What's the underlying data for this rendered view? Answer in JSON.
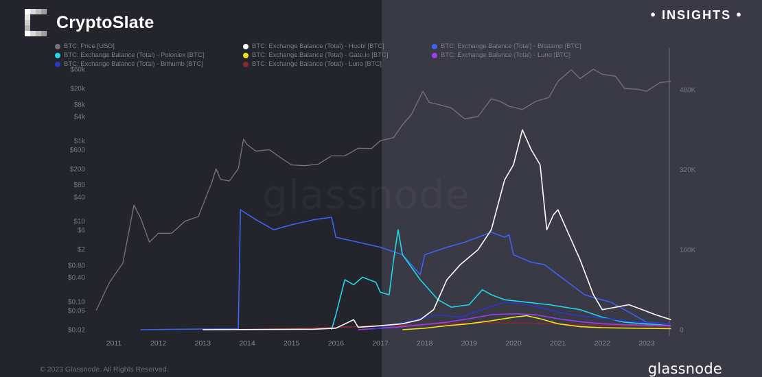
{
  "brand": {
    "name": "CryptoSlate"
  },
  "badge": {
    "label": "INSIGHTS"
  },
  "footer": {
    "copyright": "© 2023 Glassnode. All Rights Reserved.",
    "logo": "glassnode"
  },
  "watermark": "glassnode",
  "colors": {
    "price": "#7a6e7a",
    "huobi": "#ffffff",
    "bitstamp": "#3d63f0",
    "poloniex": "#1fd8e8",
    "gateio": "#f2e51f",
    "luno": "#9b3ff0",
    "bithumb": "#2a37c8",
    "luno_dark": "#8a2a2a"
  },
  "chart_data": {
    "type": "line",
    "title": "",
    "x_ticks": [
      "2011",
      "2012",
      "2013",
      "2014",
      "2015",
      "2016",
      "2017",
      "2018",
      "2019",
      "2020",
      "2021",
      "2022",
      "2023"
    ],
    "y_left_ticks": [
      "$60k",
      "$20k",
      "$8k",
      "$4k",
      "$1k",
      "$600",
      "$200",
      "$80",
      "$40",
      "$10",
      "$6",
      "$2",
      "$0.80",
      "$0.40",
      "$0.10",
      "$0.06",
      "$0.02"
    ],
    "y_right_ticks": [
      "480K",
      "320K",
      "160K",
      "0"
    ],
    "y_left_scale": "log",
    "y_right_range": [
      0,
      480000
    ],
    "legend_position": "top",
    "series": [
      {
        "name": "BTC: Price [USD]",
        "axis": "left",
        "color_key": "price",
        "points": [
          [
            2010.6,
            0.06
          ],
          [
            2010.9,
            0.3
          ],
          [
            2011.2,
            0.9
          ],
          [
            2011.45,
            25
          ],
          [
            2011.6,
            12
          ],
          [
            2011.8,
            3
          ],
          [
            2012.0,
            5
          ],
          [
            2012.3,
            5
          ],
          [
            2012.6,
            10
          ],
          [
            2012.9,
            13
          ],
          [
            2013.2,
            90
          ],
          [
            2013.3,
            200
          ],
          [
            2013.4,
            110
          ],
          [
            2013.6,
            100
          ],
          [
            2013.8,
            200
          ],
          [
            2013.92,
            1100
          ],
          [
            2014.0,
            800
          ],
          [
            2014.2,
            550
          ],
          [
            2014.5,
            600
          ],
          [
            2014.8,
            350
          ],
          [
            2015.0,
            250
          ],
          [
            2015.3,
            240
          ],
          [
            2015.6,
            260
          ],
          [
            2015.9,
            420
          ],
          [
            2016.2,
            420
          ],
          [
            2016.5,
            650
          ],
          [
            2016.8,
            640
          ],
          [
            2017.0,
            1000
          ],
          [
            2017.3,
            1200
          ],
          [
            2017.5,
            2500
          ],
          [
            2017.7,
            4500
          ],
          [
            2017.96,
            17000
          ],
          [
            2018.1,
            9000
          ],
          [
            2018.3,
            8000
          ],
          [
            2018.6,
            6500
          ],
          [
            2018.9,
            3500
          ],
          [
            2019.2,
            4000
          ],
          [
            2019.5,
            11000
          ],
          [
            2019.7,
            9500
          ],
          [
            2019.9,
            7200
          ],
          [
            2020.2,
            6000
          ],
          [
            2020.5,
            9500
          ],
          [
            2020.8,
            12000
          ],
          [
            2021.0,
            30000
          ],
          [
            2021.3,
            58000
          ],
          [
            2021.5,
            35000
          ],
          [
            2021.8,
            60000
          ],
          [
            2022.0,
            45000
          ],
          [
            2022.3,
            40000
          ],
          [
            2022.5,
            20000
          ],
          [
            2022.8,
            19000
          ],
          [
            2023.0,
            17000
          ],
          [
            2023.3,
            28000
          ],
          [
            2023.55,
            30000
          ]
        ]
      },
      {
        "name": "BTC: Exchange Balance (Total) - Huobi [BTC]",
        "axis": "right",
        "color_key": "huobi",
        "points": [
          [
            2013.0,
            0
          ],
          [
            2015.5,
            1000
          ],
          [
            2016.0,
            3000
          ],
          [
            2016.4,
            20000
          ],
          [
            2016.5,
            5000
          ],
          [
            2017.0,
            8000
          ],
          [
            2017.5,
            12000
          ],
          [
            2017.9,
            20000
          ],
          [
            2018.2,
            40000
          ],
          [
            2018.5,
            100000
          ],
          [
            2018.8,
            130000
          ],
          [
            2019.2,
            160000
          ],
          [
            2019.5,
            200000
          ],
          [
            2019.8,
            300000
          ],
          [
            2020.0,
            330000
          ],
          [
            2020.2,
            400000
          ],
          [
            2020.4,
            360000
          ],
          [
            2020.6,
            330000
          ],
          [
            2020.75,
            200000
          ],
          [
            2020.9,
            230000
          ],
          [
            2021.0,
            240000
          ],
          [
            2021.2,
            200000
          ],
          [
            2021.5,
            140000
          ],
          [
            2021.8,
            70000
          ],
          [
            2022.0,
            40000
          ],
          [
            2022.3,
            45000
          ],
          [
            2022.6,
            50000
          ],
          [
            2022.9,
            40000
          ],
          [
            2023.2,
            30000
          ],
          [
            2023.55,
            20000
          ]
        ]
      },
      {
        "name": "BTC: Exchange Balance (Total) - Bitstamp [BTC]",
        "axis": "right",
        "color_key": "bitstamp",
        "points": [
          [
            2011.6,
            0
          ],
          [
            2013.8,
            2000
          ],
          [
            2013.85,
            240000
          ],
          [
            2014.2,
            220000
          ],
          [
            2014.6,
            200000
          ],
          [
            2015.0,
            210000
          ],
          [
            2015.5,
            220000
          ],
          [
            2015.9,
            225000
          ],
          [
            2016.0,
            185000
          ],
          [
            2016.5,
            175000
          ],
          [
            2017.0,
            165000
          ],
          [
            2017.5,
            150000
          ],
          [
            2017.9,
            110000
          ],
          [
            2018.0,
            150000
          ],
          [
            2018.5,
            165000
          ],
          [
            2018.9,
            175000
          ],
          [
            2019.2,
            185000
          ],
          [
            2019.5,
            195000
          ],
          [
            2019.8,
            185000
          ],
          [
            2019.9,
            190000
          ],
          [
            2020.0,
            150000
          ],
          [
            2020.4,
            135000
          ],
          [
            2020.7,
            130000
          ],
          [
            2021.0,
            110000
          ],
          [
            2021.3,
            90000
          ],
          [
            2021.6,
            70000
          ],
          [
            2021.9,
            62000
          ],
          [
            2022.2,
            55000
          ],
          [
            2022.5,
            40000
          ],
          [
            2023.0,
            15000
          ],
          [
            2023.55,
            12000
          ]
        ]
      },
      {
        "name": "BTC: Exchange Balance (Total) - Poloniex [BTC]",
        "axis": "right",
        "color_key": "poloniex",
        "points": [
          [
            2015.9,
            0
          ],
          [
            2016.0,
            30000
          ],
          [
            2016.2,
            100000
          ],
          [
            2016.4,
            90000
          ],
          [
            2016.6,
            105000
          ],
          [
            2016.9,
            95000
          ],
          [
            2017.0,
            75000
          ],
          [
            2017.2,
            70000
          ],
          [
            2017.3,
            140000
          ],
          [
            2017.4,
            200000
          ],
          [
            2017.5,
            150000
          ],
          [
            2017.7,
            125000
          ],
          [
            2017.9,
            100000
          ],
          [
            2018.0,
            90000
          ],
          [
            2018.3,
            60000
          ],
          [
            2018.6,
            45000
          ],
          [
            2019.0,
            50000
          ],
          [
            2019.3,
            80000
          ],
          [
            2019.5,
            70000
          ],
          [
            2019.8,
            60000
          ],
          [
            2020.3,
            55000
          ],
          [
            2020.8,
            50000
          ],
          [
            2021.5,
            40000
          ],
          [
            2022.0,
            25000
          ],
          [
            2022.5,
            15000
          ],
          [
            2023.55,
            8000
          ]
        ]
      },
      {
        "name": "BTC: Exchange Balance (Total) - Gate.io [BTC]",
        "axis": "right",
        "color_key": "gateio",
        "points": [
          [
            2017.5,
            0
          ],
          [
            2018.0,
            3000
          ],
          [
            2018.5,
            8000
          ],
          [
            2019.0,
            12000
          ],
          [
            2019.5,
            18000
          ],
          [
            2020.0,
            25000
          ],
          [
            2020.3,
            28000
          ],
          [
            2020.6,
            22000
          ],
          [
            2021.0,
            12000
          ],
          [
            2021.5,
            6000
          ],
          [
            2022.0,
            4000
          ],
          [
            2023.55,
            2000
          ]
        ]
      },
      {
        "name": "BTC: Exchange Balance (Total) - Luno [BTC]",
        "axis": "right",
        "color_key": "luno",
        "points": [
          [
            2016.5,
            0
          ],
          [
            2017.5,
            6000
          ],
          [
            2018.5,
            15000
          ],
          [
            2019.0,
            22000
          ],
          [
            2019.5,
            30000
          ],
          [
            2020.0,
            32000
          ],
          [
            2020.5,
            30000
          ],
          [
            2021.0,
            22000
          ],
          [
            2021.5,
            16000
          ],
          [
            2022.0,
            12000
          ],
          [
            2022.5,
            10000
          ],
          [
            2023.55,
            8000
          ]
        ]
      },
      {
        "name": "BTC: Exchange Balance (Total) - Bithumb [BTC]",
        "axis": "right",
        "color_key": "bithumb",
        "points": [
          [
            2016.8,
            0
          ],
          [
            2017.3,
            10000
          ],
          [
            2017.8,
            20000
          ],
          [
            2018.3,
            30000
          ],
          [
            2018.8,
            25000
          ],
          [
            2019.3,
            40000
          ],
          [
            2019.8,
            55000
          ],
          [
            2020.3,
            50000
          ],
          [
            2020.8,
            40000
          ],
          [
            2021.3,
            30000
          ],
          [
            2021.8,
            25000
          ],
          [
            2022.3,
            20000
          ],
          [
            2022.8,
            15000
          ],
          [
            2023.55,
            12000
          ]
        ]
      },
      {
        "name": "BTC: Exchange Balance (Total) - Luno [BTC]",
        "axis": "right",
        "color_key": "luno_dark",
        "points": [
          [
            2013.0,
            0
          ],
          [
            2015.0,
            2000
          ],
          [
            2016.5,
            6000
          ],
          [
            2017.5,
            9000
          ],
          [
            2018.5,
            12000
          ],
          [
            2019.5,
            14000
          ],
          [
            2020.5,
            13000
          ],
          [
            2021.5,
            10000
          ],
          [
            2022.5,
            8000
          ],
          [
            2023.55,
            6000
          ]
        ]
      }
    ]
  }
}
